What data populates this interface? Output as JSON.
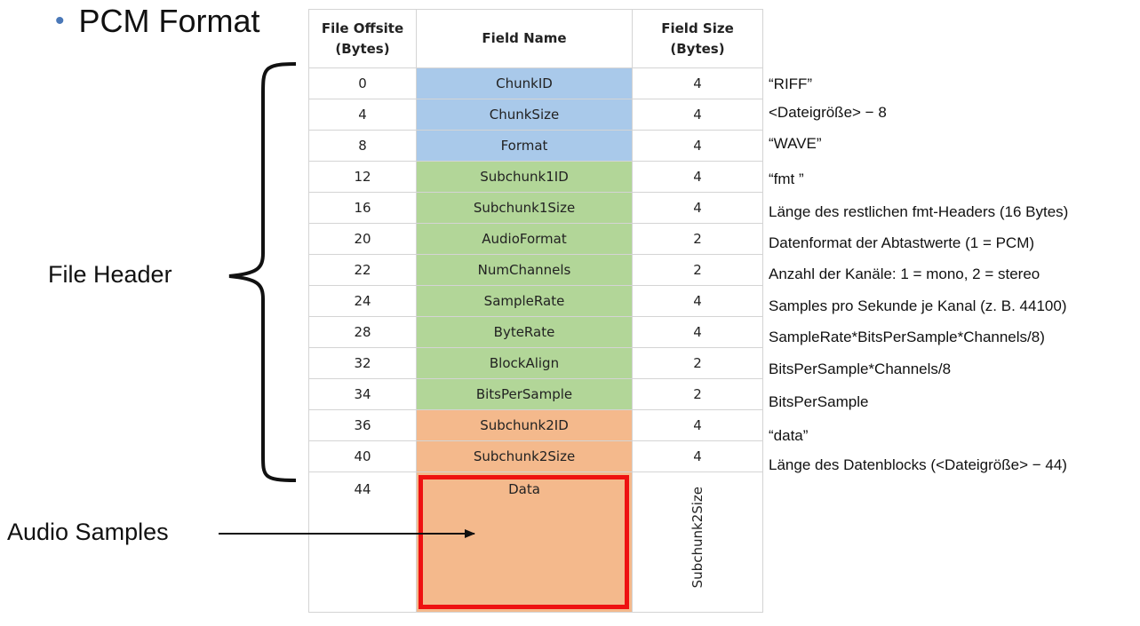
{
  "bullet": "PCM Format",
  "labels": {
    "file_header": "File Header",
    "audio_samples": "Audio Samples"
  },
  "table": {
    "headers": {
      "offset": "File Offsite (Bytes)",
      "name": "Field Name",
      "size": "Field Size (Bytes)"
    },
    "rows": [
      {
        "offset": "0",
        "name": "ChunkID",
        "size": "4",
        "group": "blue",
        "desc": "“RIFF”"
      },
      {
        "offset": "4",
        "name": "ChunkSize",
        "size": "4",
        "group": "blue",
        "desc": "<Dateigröße> − 8"
      },
      {
        "offset": "8",
        "name": "Format",
        "size": "4",
        "group": "blue",
        "desc": "“WAVE”"
      },
      {
        "offset": "12",
        "name": "Subchunk1ID",
        "size": "4",
        "group": "green",
        "desc": "“fmt ”"
      },
      {
        "offset": "16",
        "name": "Subchunk1Size",
        "size": "4",
        "group": "green",
        "desc": "Länge des restlichen fmt-Headers (16 Bytes)"
      },
      {
        "offset": "20",
        "name": "AudioFormat",
        "size": "2",
        "group": "green",
        "desc": "Datenformat der Abtastwerte (1 = PCM)"
      },
      {
        "offset": "22",
        "name": "NumChannels",
        "size": "2",
        "group": "green",
        "desc": "Anzahl der Kanäle: 1 = mono, 2 = stereo"
      },
      {
        "offset": "24",
        "name": "SampleRate",
        "size": "4",
        "group": "green",
        "desc": "Samples pro Sekunde je Kanal (z. B. 44100)"
      },
      {
        "offset": "28",
        "name": "ByteRate",
        "size": "4",
        "group": "green",
        "desc": "SampleRate*BitsPerSample*Channels/8)"
      },
      {
        "offset": "32",
        "name": "BlockAlign",
        "size": "2",
        "group": "green",
        "desc": "BitsPerSample*Channels/8"
      },
      {
        "offset": "34",
        "name": "BitsPerSample",
        "size": "2",
        "group": "green",
        "desc": "BitsPerSample"
      },
      {
        "offset": "36",
        "name": "Subchunk2ID",
        "size": "4",
        "group": "orange",
        "desc": "“data”"
      },
      {
        "offset": "40",
        "name": "Subchunk2Size",
        "size": "4",
        "group": "orange",
        "desc": "Länge des Datenblocks (<Dateigröße> − 44)"
      }
    ],
    "data_row": {
      "offset": "44",
      "name": "Data",
      "size": "Subchunk2Size"
    }
  },
  "colors": {
    "blue": "#a9c9ea",
    "green": "#b2d698",
    "orange": "#f4b98c",
    "highlight": "#ee1111",
    "bullet": "#4a78b8"
  }
}
